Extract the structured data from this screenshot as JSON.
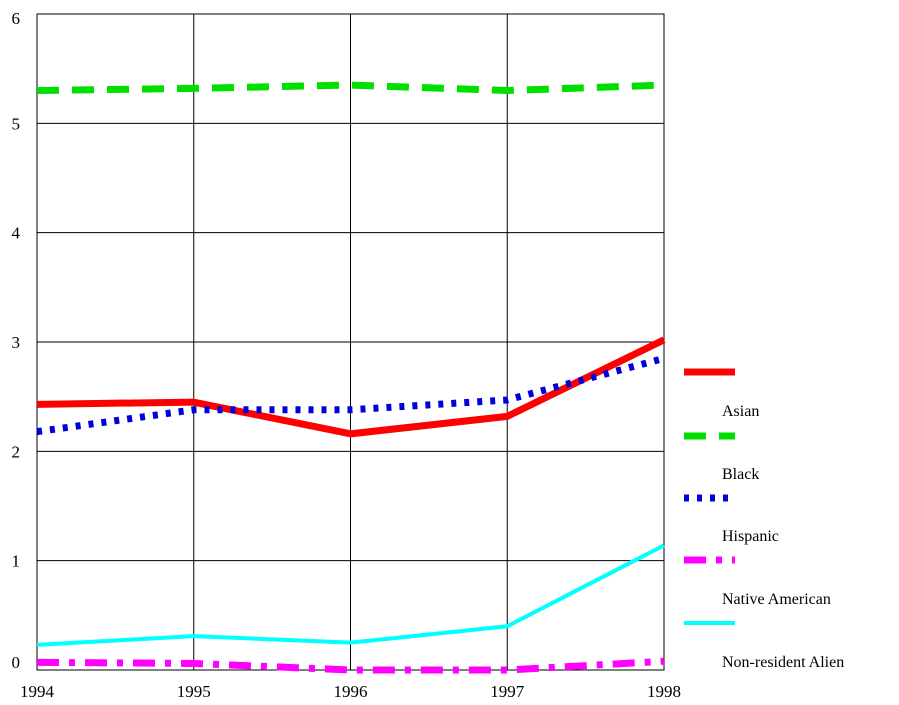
{
  "chart_data": {
    "type": "line",
    "title": "",
    "xlabel": "",
    "ylabel": "",
    "x": [
      1994,
      1995,
      1996,
      1997,
      1998
    ],
    "x_tick_labels": [
      "1994",
      "1995",
      "1996",
      "1997",
      "1998"
    ],
    "y_tick_labels": [
      "0",
      "1",
      "2",
      "3",
      "4",
      "5",
      "6"
    ],
    "xlim": [
      1994,
      1998
    ],
    "ylim": [
      0,
      6
    ],
    "grid": true,
    "legend_position": "right",
    "legend_labels": [
      "",
      "Asian",
      "Black",
      "Hispanic",
      "Native American",
      "Non-resident Alien"
    ],
    "series": [
      {
        "values": [
          2.43,
          2.45,
          2.16,
          2.32,
          3.02
        ],
        "color": "#ff0000",
        "style": "solid-thick"
      },
      {
        "values": [
          5.3,
          5.32,
          5.35,
          5.3,
          5.35
        ],
        "color": "#00e000",
        "style": "dashed"
      },
      {
        "values": [
          2.18,
          2.38,
          2.38,
          2.47,
          2.85
        ],
        "color": "#0000dd",
        "style": "dotted"
      },
      {
        "values": [
          0.07,
          0.06,
          0.0,
          0.0,
          0.08
        ],
        "color": "#ff00ff",
        "style": "dash-dot"
      },
      {
        "values": [
          0.23,
          0.31,
          0.25,
          0.4,
          1.14
        ],
        "color": "#00ffff",
        "style": "solid"
      }
    ]
  }
}
